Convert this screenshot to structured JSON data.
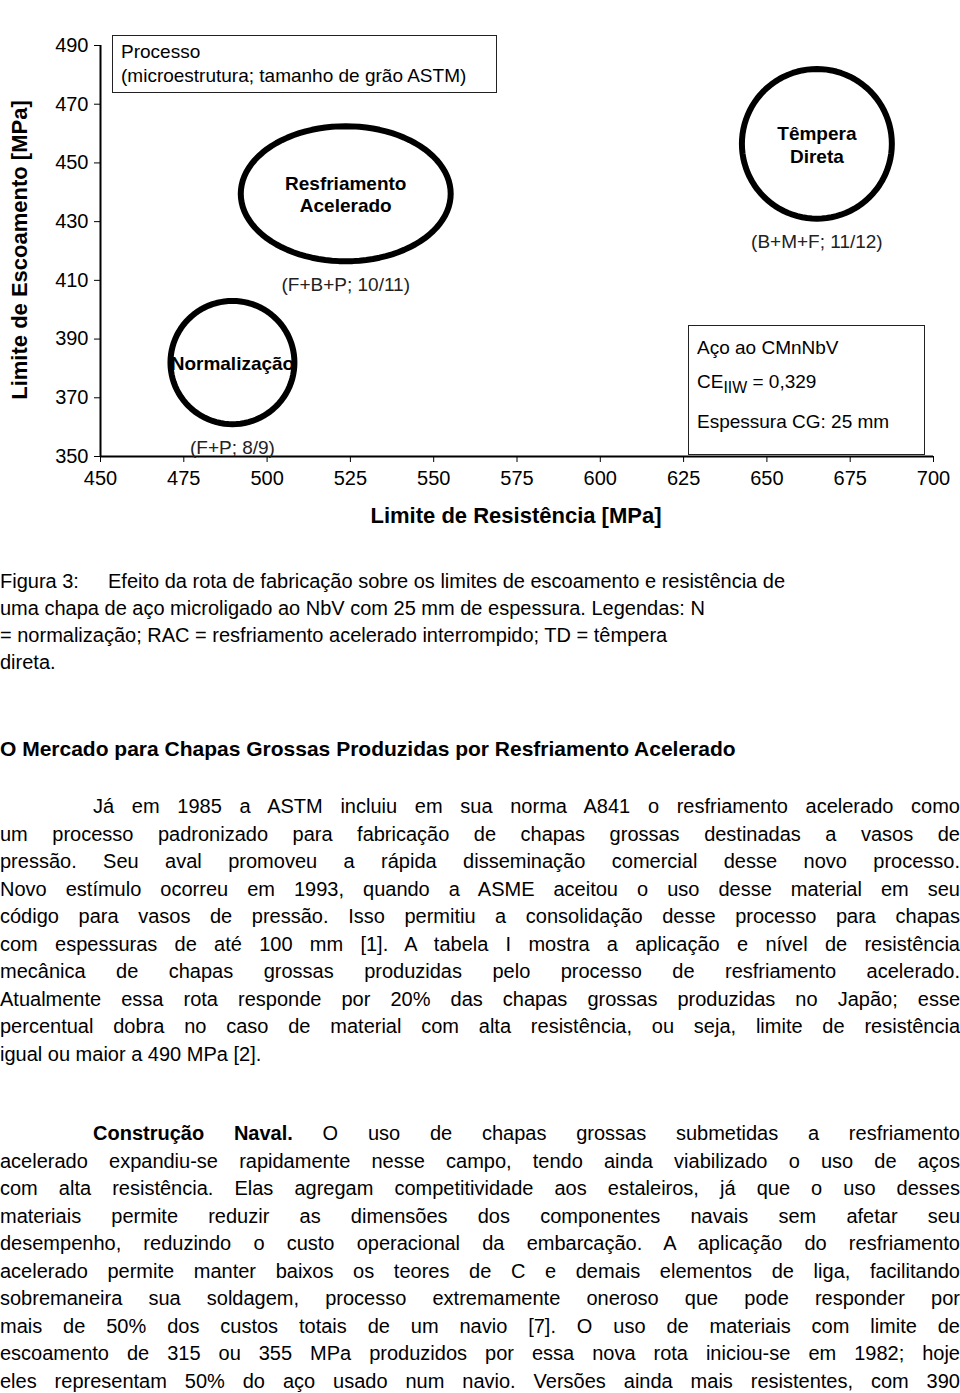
{
  "chart_data": {
    "type": "ellipse",
    "xlabel": "Limite de Resistência [MPa]",
    "ylabel": "Limite de Escoamento [MPa]",
    "xlim": [
      450,
      700
    ],
    "xticks": [
      450,
      475,
      500,
      525,
      550,
      575,
      600,
      625,
      650,
      675,
      700
    ],
    "ylim": [
      350,
      490
    ],
    "yticks": [
      350,
      370,
      390,
      410,
      430,
      450,
      470,
      490
    ],
    "grid": false,
    "color": "#000000",
    "categories": [
      "Normalização",
      "Resfriamento\nAcelerado",
      "Têmpera\nDireta"
    ],
    "notes": [
      "(F+P; 8/9)",
      "(F+B+P; 10/11)",
      "(B+M+F; 11/12)"
    ],
    "x": [
      489.6,
      523.6,
      665
    ],
    "y": [
      382,
      439.5,
      456.5
    ],
    "x_range": [
      18.6,
      31.5,
      22.5
    ],
    "y_range": [
      21,
      23,
      25.5
    ],
    "legend_box": [
      "Processo",
      "(microestrutura; tamanho de grão ASTM)"
    ],
    "info_box": {
      "title": "Aço ao CMnNbV",
      "ce_label": "CE",
      "ce_subscript": "IIW",
      "ce_value": "= 0,329",
      "thickness": "Espessura CG: 25 mm"
    }
  },
  "caption": {
    "label": "Figura 3:",
    "lines": [
      "Efeito da rota de fabricação sobre os limites de escoamento e resistência de",
      "uma chapa de aço microligado ao NbV com 25 mm de espessura. Legendas: N",
      "= normalização; RAC = resfriamento acelerado interrompido; TD = têmpera",
      "direta."
    ]
  },
  "heading": "O Mercado para Chapas Grossas Produzidas por Resfriamento Acelerado",
  "paragraphs": [
    {
      "lines": [
        "Já em 1985 a ASTM incluiu em sua norma A841 o resfriamento acelerado como",
        "um processo padronizado para fabricação de chapas grossas destinadas a vasos de",
        "pressão. Seu aval promoveu a rápida disseminação comercial desse novo processo.",
        "Novo estímulo ocorreu em 1993, quando a ASME aceitou o uso desse material em seu",
        "código para vasos de pressão. Isso permitiu a consolidação desse processo para chapas",
        "com espessuras de até 100 mm [1]. A tabela I mostra a aplicação e nível de resistência",
        "mecânica de chapas grossas produzidas pelo processo de resfriamento acelerado.",
        "Atualmente essa rota responde por 20% das chapas grossas produzidas no Japão; esse",
        "percentual dobra no caso de material com alta resistência, ou seja, limite de resistência",
        "igual ou maior a 490 MPa [2]."
      ]
    },
    {
      "lead": "Construção Naval.",
      "lines": [
        "O uso de chapas grossas submetidas a resfriamento",
        "acelerado expandiu-se rapidamente nesse campo, tendo ainda viabilizado o uso de aços",
        "com alta resistência. Elas agregam competitividade aos estaleiros, já que o uso desses",
        "materiais permite reduzir as dimensões dos componentes navais sem afetar seu",
        "desempenho, reduzindo o custo operacional da embarcação. A aplicação do resfriamento",
        "acelerado permite manter baixos os teores de C e demais elementos de liga, facilitando",
        "sobremaneira sua soldagem, processo extremamente oneroso que pode responder por",
        "mais de 50% dos custos totais de um navio [7]. O uso de materiais com limite de",
        "escoamento de 315 ou 355 MPa produzidos por essa nova rota iniciou-se em 1982; hoje",
        "eles representam 50% do aço usado num navio. Versões ainda mais resistentes, com 390"
      ]
    }
  ]
}
